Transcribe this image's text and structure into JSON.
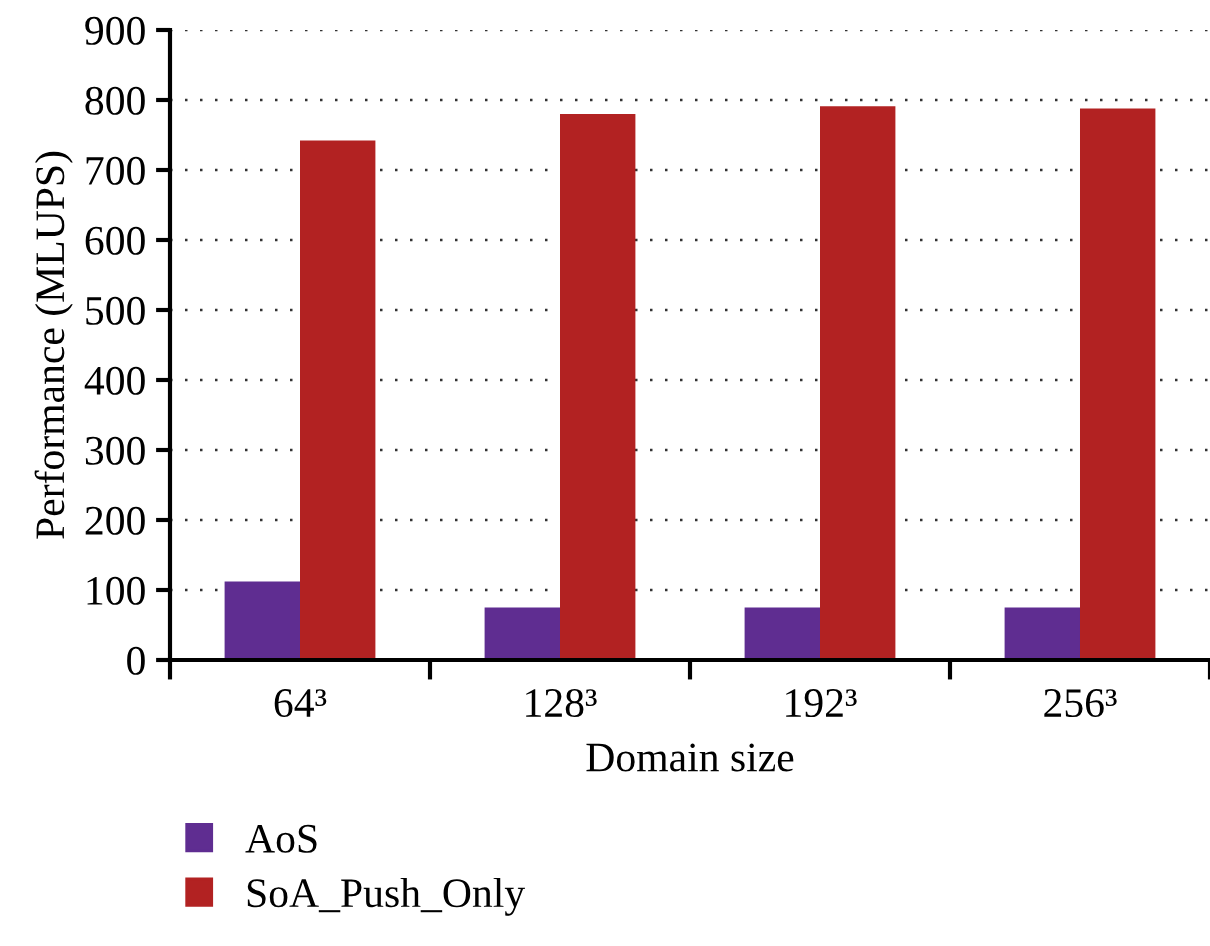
{
  "chart_data": {
    "type": "bar",
    "xlabel": "Domain size",
    "ylabel": "Performance (MLUPS)",
    "categories": [
      "64³",
      "128³",
      "192³",
      "256³"
    ],
    "series": [
      {
        "name": "AoS",
        "color": "#5f2d91",
        "values": [
          112,
          75,
          75,
          75
        ]
      },
      {
        "name": "SoA_Push_Only",
        "color": "#b22222",
        "values": [
          742,
          780,
          791,
          788
        ]
      }
    ],
    "ylim": [
      0,
      900
    ],
    "yticks": [
      0,
      100,
      200,
      300,
      400,
      500,
      600,
      700,
      800,
      900
    ],
    "grid": "y",
    "legend": "bottom"
  }
}
